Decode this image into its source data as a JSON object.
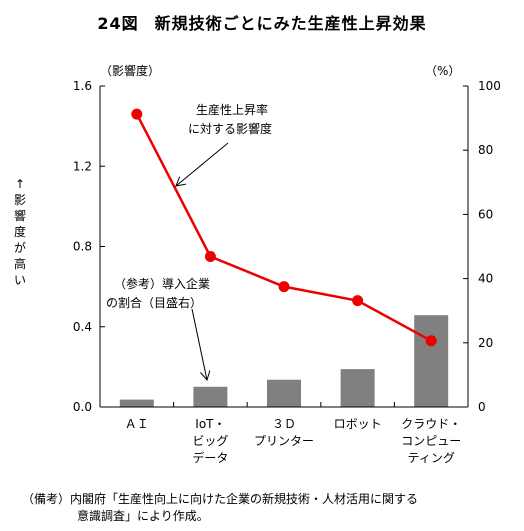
{
  "title": {
    "number": "24図",
    "text": "新規技術ごとにみた生産性上昇効果"
  },
  "left_unit": "（影響度）",
  "right_unit": "（%）",
  "ylabel_chars": [
    "↑",
    "影",
    "響",
    "度",
    "が",
    "高",
    "い"
  ],
  "annotations": {
    "line": [
      "生産性上昇率",
      "に対する影響度"
    ],
    "bar": [
      "（参考）導入企業",
      "の割合（目盛右）"
    ]
  },
  "footnote": {
    "line1": "（備考）内閣府「生産性向上に向けた企業の新規技術・人材活用に関する",
    "line2": "意識調査」により作成。"
  },
  "chart_data": {
    "type": "bar+line",
    "categories": [
      [
        "ＡＩ"
      ],
      [
        "IoT・",
        "ビッグ",
        "データ"
      ],
      [
        "３Ｄ",
        "プリンター"
      ],
      [
        "ロボット"
      ],
      [
        "クラウド・",
        "コンピュー",
        "ティング"
      ]
    ],
    "series": [
      {
        "name": "生産性上昇率に対する影響度",
        "type": "line",
        "axis": "left",
        "color": "#ee0000",
        "values": [
          1.46,
          0.75,
          0.6,
          0.53,
          0.33
        ]
      },
      {
        "name": "導入企業の割合",
        "type": "bar",
        "axis": "right",
        "color": "#808080",
        "values": [
          2.3,
          6.3,
          8.5,
          11.8,
          28.6
        ]
      }
    ],
    "left_axis": {
      "ylim": [
        0,
        1.6
      ],
      "ticks": [
        "0.0",
        "0.4",
        "0.8",
        "1.2",
        "1.6"
      ]
    },
    "right_axis": {
      "ylim": [
        0,
        100
      ],
      "ticks": [
        "0",
        "20",
        "40",
        "60",
        "80",
        "100"
      ]
    },
    "grid": false
  }
}
